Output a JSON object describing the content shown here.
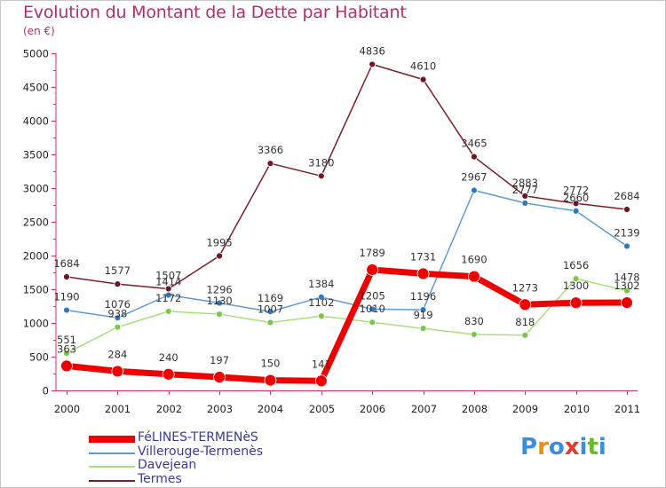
{
  "title": "Evolution du Montant de la Dette par Habitant",
  "subtitle": "(en €)",
  "logo": {
    "text": "Proxiti",
    "letter_colors": [
      "#3b8de0",
      "#f08a1c",
      "#3b8de0",
      "#e03c2c",
      "#3b8de0",
      "#6ab82e",
      "#3b8de0"
    ]
  },
  "chart_data": {
    "type": "line",
    "title": "Evolution du Montant de la Dette par Habitant",
    "ylabel": "(en €)",
    "xlabel": "",
    "ylim": [
      0,
      5000
    ],
    "yticks": [
      0,
      500,
      1000,
      1500,
      2000,
      2500,
      3000,
      3500,
      4000,
      4500,
      5000
    ],
    "categories": [
      "2000",
      "2001",
      "2002",
      "2003",
      "2004",
      "2005",
      "2006",
      "2007",
      "2008",
      "2009",
      "2010",
      "2011"
    ],
    "grid": "none",
    "legend": "bottom-left",
    "series": [
      {
        "name": "Termes",
        "color": "#7a1e28",
        "point_color": "#6e1422",
        "line_width": 1.5,
        "values": [
          1684,
          1577,
          1507,
          1995,
          3366,
          3180,
          4836,
          4610,
          3465,
          2883,
          2772,
          2684
        ],
        "labels": [
          "1684",
          "1577",
          "1507",
          "1995",
          "3366",
          "3180",
          "4836",
          "4610",
          "3465",
          "2883",
          "2772",
          "2684"
        ]
      },
      {
        "name": "Villerouge-Termenès",
        "color": "#5b9bd5",
        "point_color": "#2f78c0",
        "line_width": 1.5,
        "values": [
          1190,
          1076,
          1414,
          1296,
          1169,
          1384,
          1205,
          1196,
          2967,
          2777,
          2660,
          2139
        ],
        "labels": [
          "1190",
          "1076",
          "1414",
          "1296",
          "1169",
          "1384",
          "1205",
          "1196",
          "2967",
          "2777",
          "2660",
          "2139"
        ]
      },
      {
        "name": "Davejean",
        "color": "#a6e07a",
        "point_color": "#7ac84a",
        "line_width": 1.5,
        "values": [
          551,
          938,
          1172,
          1130,
          1007,
          1102,
          1010,
          919,
          830,
          818,
          1656,
          1478
        ],
        "labels": [
          "551",
          "938",
          "1172",
          "1130",
          "1007",
          "1102",
          "1010",
          "919",
          "830",
          "818",
          "1656",
          "1478"
        ]
      },
      {
        "name": "FéLINES-TERMENèS",
        "color": "#ee0000",
        "point_color": "#ee0000",
        "line_width": 7,
        "values": [
          363,
          284,
          240,
          197,
          150,
          141,
          1789,
          1731,
          1690,
          1273,
          1300,
          1302
        ],
        "labels": [
          "363",
          "284",
          "240",
          "197",
          "150",
          "141",
          "1789",
          "1731",
          "1690",
          "1273",
          "1300",
          "1302"
        ]
      }
    ]
  },
  "legend_items": [
    {
      "name": "FéLINES-TERMENèS",
      "color": "#ee0000"
    },
    {
      "name": "Villerouge-Termenès",
      "color": "#5b9bd5"
    },
    {
      "name": "Davejean",
      "color": "#a6e07a"
    },
    {
      "name": "Termes",
      "color": "#7a1e28"
    }
  ]
}
